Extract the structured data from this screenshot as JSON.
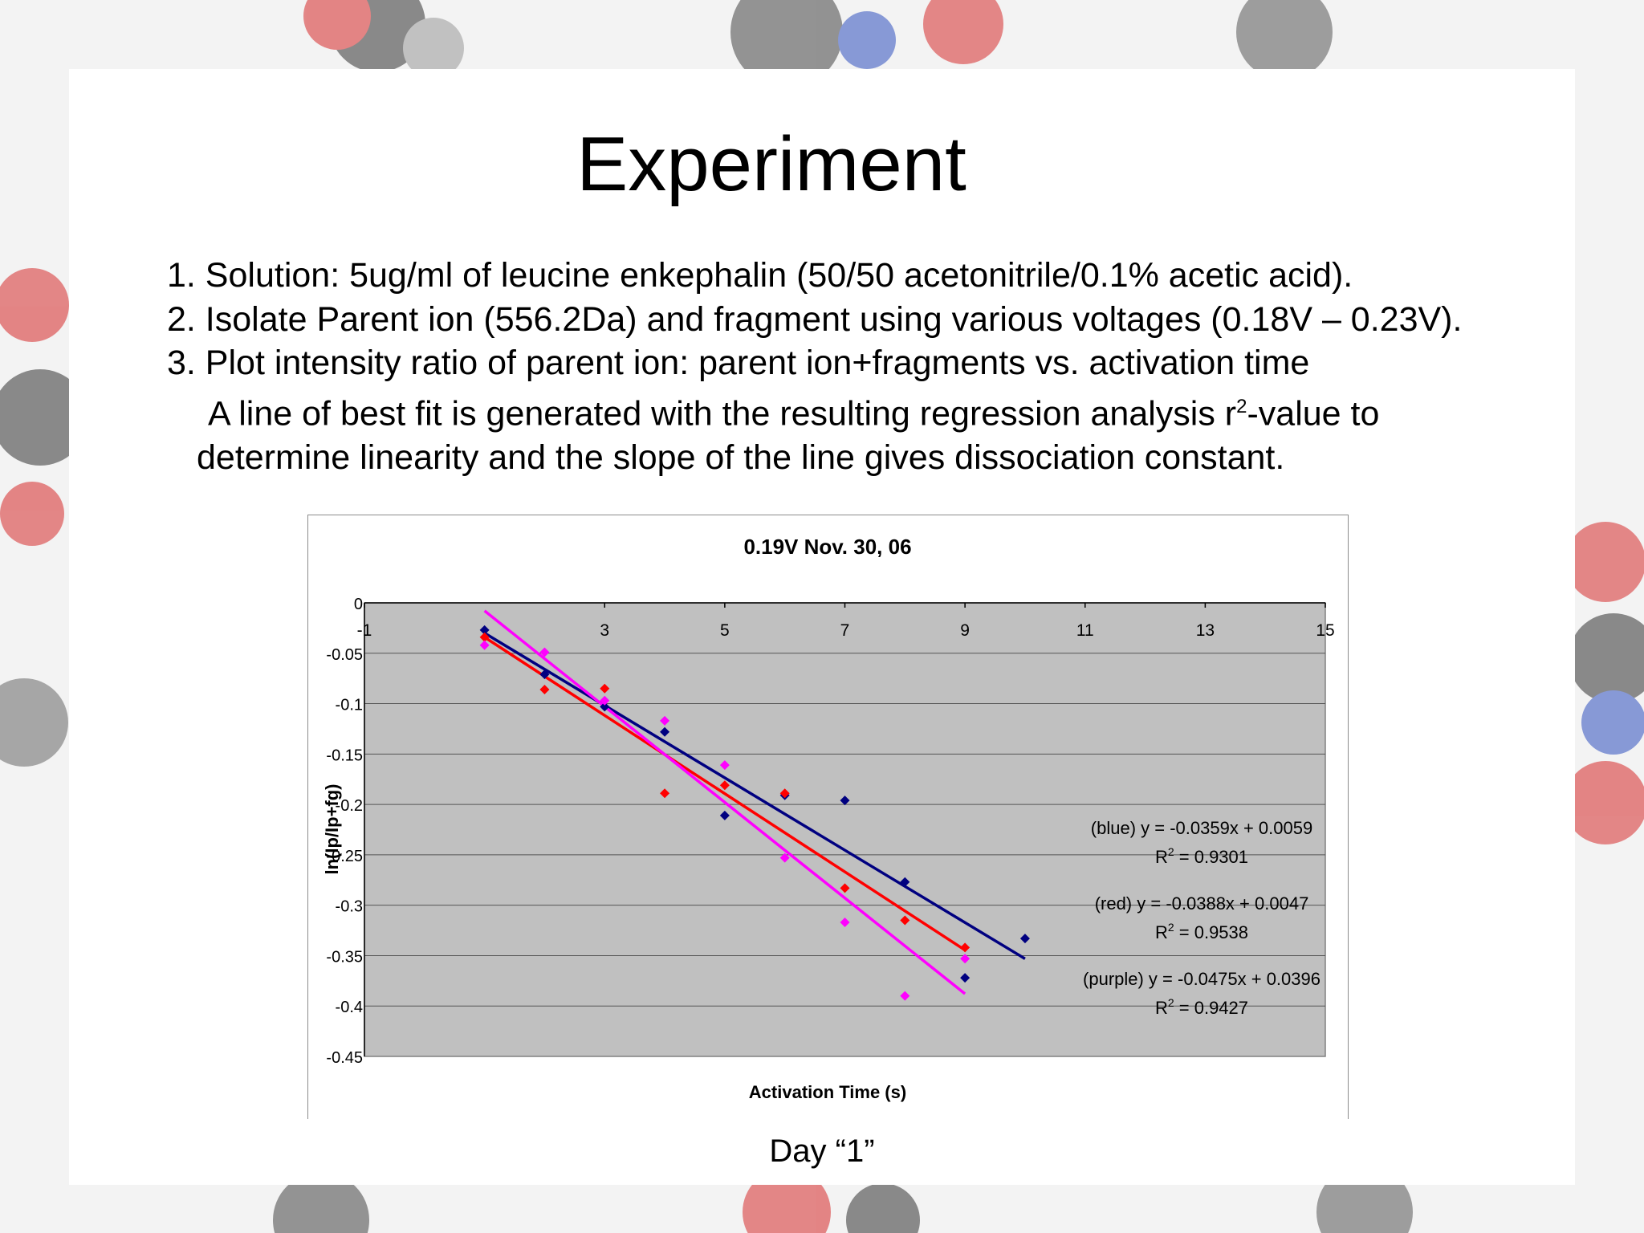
{
  "slide": {
    "title": "Experiment",
    "bullets": [
      "1. Solution: 5ug/ml of leucine enkephalin (50/50 acetonitrile/0.1% acetic acid).",
      "2. Isolate Parent ion (556.2Da) and fragment using various voltages (0.18V – 0.23V).",
      "3. Plot intensity ratio of parent ion: parent ion+fragments vs. activation time"
    ],
    "note_line1_pre": "A line of best fit is generated with the resulting regression analysis r",
    "note_line1_sup": "2",
    "note_line1_post": "-value to",
    "note_line2": "determine linearity and the slope of the line gives dissociation constant.",
    "caption": "Day “1”"
  },
  "chart_data": {
    "type": "scatter",
    "title": "0.19V Nov. 30, 06",
    "xlabel": "Activation Time (s)",
    "ylabel": "ln(Ip/Ip+fg)",
    "xlim": [
      -1,
      15
    ],
    "ylim": [
      -0.45,
      0
    ],
    "x_ticks": [
      "-1",
      "3",
      "5",
      "7",
      "9",
      "11",
      "13",
      "15"
    ],
    "x_tick_values": [
      -1,
      3,
      5,
      7,
      9,
      11,
      13,
      15
    ],
    "y_ticks": [
      "0",
      "-0.05",
      "-0.1",
      "-0.15",
      "-0.2",
      "-0.25",
      "-0.3",
      "-0.35",
      "-0.4",
      "-0.45"
    ],
    "y_tick_values": [
      0,
      -0.05,
      -0.1,
      -0.15,
      -0.2,
      -0.25,
      -0.3,
      -0.35,
      -0.4,
      -0.45
    ],
    "grid": true,
    "plot_background": "#c0c0c0",
    "series": [
      {
        "color": "#000080",
        "points": [
          [
            1,
            -0.027
          ],
          [
            2,
            -0.071
          ],
          [
            3,
            -0.103
          ],
          [
            4,
            -0.128
          ],
          [
            5,
            -0.211
          ],
          [
            6,
            -0.191
          ],
          [
            7,
            -0.196
          ],
          [
            8,
            -0.277
          ],
          [
            9,
            -0.372
          ],
          [
            10,
            -0.333
          ]
        ],
        "trendline": {
          "x": [
            1,
            10
          ],
          "slope": -0.0359,
          "intercept": 0.0059
        }
      },
      {
        "color": "#ff0000",
        "points": [
          [
            1,
            -0.034
          ],
          [
            2,
            -0.086
          ],
          [
            3,
            -0.085
          ],
          [
            4,
            -0.189
          ],
          [
            5,
            -0.181
          ],
          [
            6,
            -0.189
          ],
          [
            7,
            -0.283
          ],
          [
            8,
            -0.315
          ],
          [
            9,
            -0.342
          ]
        ],
        "trendline": {
          "x": [
            1,
            9
          ],
          "slope": -0.0388,
          "intercept": 0.0047
        }
      },
      {
        "color": "#ff00ff",
        "points": [
          [
            1,
            -0.042
          ],
          [
            2,
            -0.049
          ],
          [
            3,
            -0.097
          ],
          [
            4,
            -0.117
          ],
          [
            5,
            -0.161
          ],
          [
            6,
            -0.253
          ],
          [
            7,
            -0.317
          ],
          [
            8,
            -0.39
          ],
          [
            9,
            -0.353
          ]
        ],
        "trendline": {
          "x": [
            1,
            9
          ],
          "slope": -0.0475,
          "intercept": 0.0396
        }
      }
    ],
    "annotations": [
      {
        "eq": "(blue) y = -0.0359x + 0.0059",
        "r2": "0.9301"
      },
      {
        "eq": "(red) y = -0.0388x + 0.0047",
        "r2": "0.9538"
      },
      {
        "eq": "(purple) y = -0.0475x + 0.0396",
        "r2": "0.9427"
      }
    ],
    "r2_prefix": "R",
    "r2_sup": "2",
    "r2_suffix": " = "
  }
}
